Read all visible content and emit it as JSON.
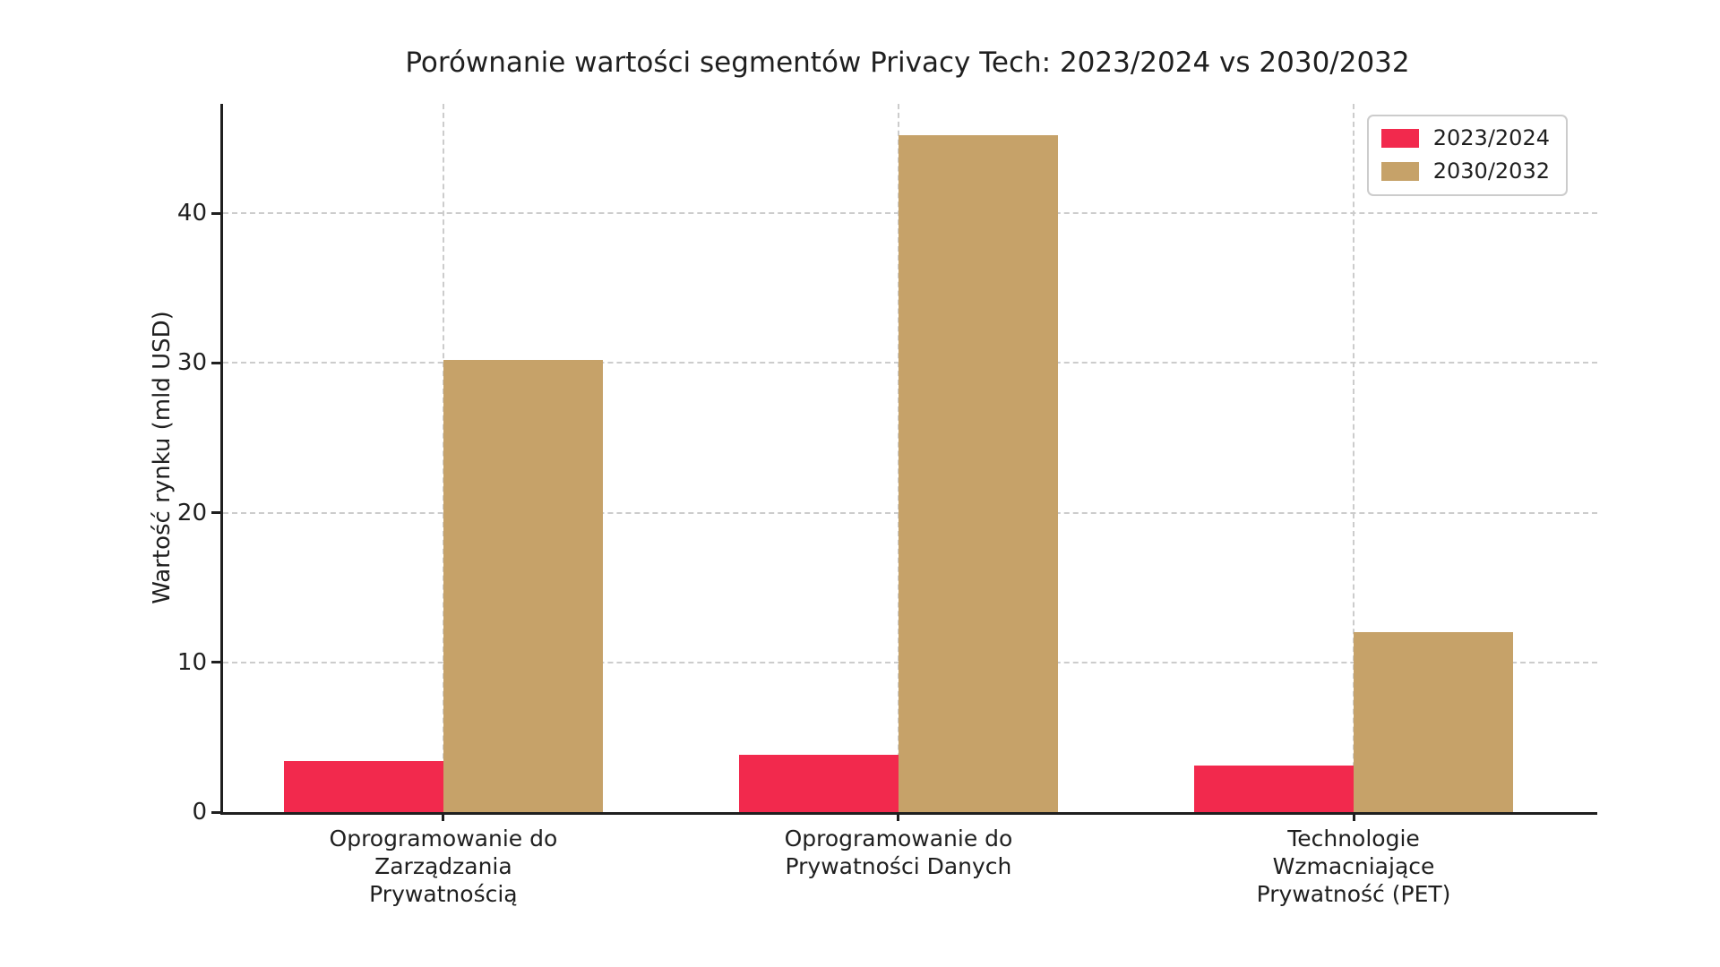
{
  "chart_data": {
    "type": "bar",
    "title": "Porównanie wartości segmentów Privacy Tech: 2023/2024 vs 2030/2032",
    "xlabel": "",
    "ylabel": "Wartość rynku (mld USD)",
    "categories": [
      "Oprogramowanie do\nZarządzania\nPrywatnością",
      "Oprogramowanie do\nPrywatności Danych",
      "Technologie\nWzmacniające\nPrywatność (PET)"
    ],
    "series": [
      {
        "name": "2023/2024",
        "color": "#F2294D",
        "values": [
          3.4,
          3.8,
          3.1
        ]
      },
      {
        "name": "2030/2032",
        "color": "#C6A269",
        "values": [
          30.2,
          45.2,
          12.0
        ]
      }
    ],
    "yticks": [
      0,
      10,
      20,
      30,
      40
    ],
    "ylim": [
      0,
      47.3
    ],
    "grid": true,
    "grid_style": "dashed",
    "legend_position": "upper right",
    "background_color": "#ffffff",
    "text_color": "#1f1f1f"
  }
}
